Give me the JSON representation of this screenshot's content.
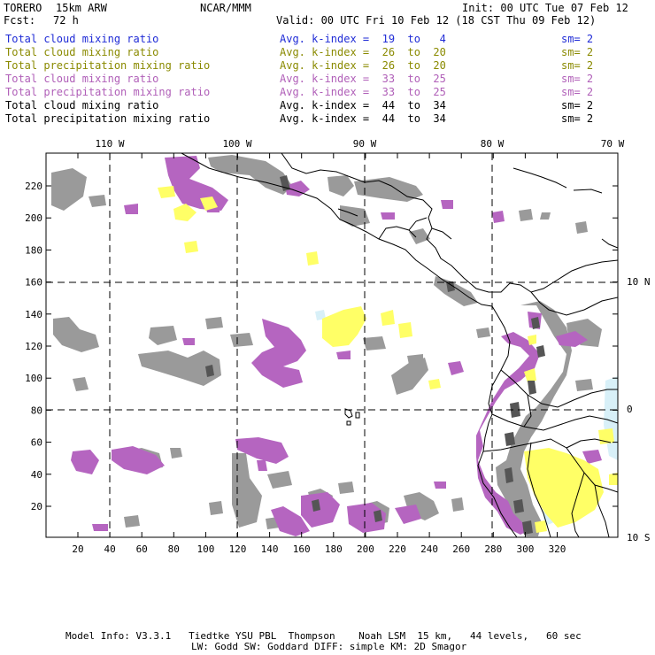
{
  "header": {
    "model": "TORERO",
    "resolution": "15km ARW",
    "org": "NCAR/MMM",
    "init": "Init: 00 UTC Tue 07 Feb 12",
    "fcst_label": "Fcst:",
    "fcst_value": "72 h",
    "valid": "Valid: 00 UTC Fri 10 Feb 12 (18 CST Thu 09 Feb 12)"
  },
  "legend_rows": [
    {
      "field": "Total cloud mixing ratio",
      "index": "Avg. k-index =  19  to   4",
      "sm": "sm= 2",
      "color": "#1f2bd6"
    },
    {
      "field": "Total cloud mixing ratio",
      "index": "Avg. k-index =  26  to  20",
      "sm": "sm= 2",
      "color": "#8a8a00"
    },
    {
      "field": "Total precipitation mixing ratio",
      "index": "Avg. k-index =  26  to  20",
      "sm": "sm= 2",
      "color": "#8a8a00"
    },
    {
      "field": "Total cloud mixing ratio",
      "index": "Avg. k-index =  33  to  25",
      "sm": "sm= 2",
      "color": "#b05fb8"
    },
    {
      "field": "Total precipitation mixing ratio",
      "index": "Avg. k-index =  33  to  25",
      "sm": "sm= 2",
      "color": "#b05fb8"
    },
    {
      "field": "Total cloud mixing ratio",
      "index": "Avg. k-index =  44  to  34",
      "sm": "sm= 2",
      "color": "#000000"
    },
    {
      "field": "Total precipitation mixing ratio",
      "index": "Avg. k-index =  44  to  34",
      "sm": "sm= 2",
      "color": "#000000"
    }
  ],
  "map": {
    "lon_labels": [
      "110 W",
      "100 W",
      "90 W",
      "80 W",
      "70 W"
    ],
    "lat_labels": [
      "10 N",
      "0",
      "10 S"
    ],
    "x_ticks": [
      "20",
      "40",
      "60",
      "80",
      "100",
      "120",
      "140",
      "160",
      "180",
      "200",
      "220",
      "240",
      "260",
      "280",
      "300",
      "320"
    ],
    "y_ticks": [
      "20",
      "40",
      "60",
      "80",
      "100",
      "120",
      "140",
      "160",
      "180",
      "200",
      "220"
    ],
    "colors": {
      "gray": "#9a9a9a",
      "dark": "#555555",
      "purple": "#b565c0",
      "yellow": "#ffff66",
      "cyan": "#d8f0f8"
    }
  },
  "footer": {
    "line1": "Model Info: V3.3.1   Tiedtke YSU PBL  Thompson    Noah LSM  15 km,   44 levels,   60 sec",
    "line2": "LW: Godd SW: Goddard DIFF: simple KM: 2D Smagor"
  }
}
